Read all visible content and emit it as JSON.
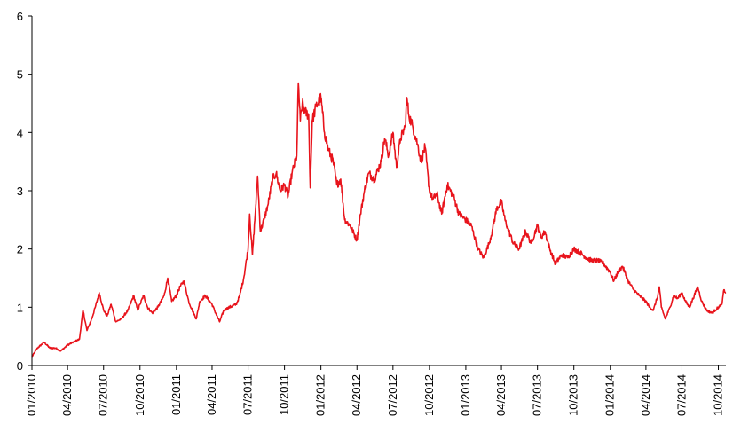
{
  "chart_data": {
    "type": "line",
    "title": "",
    "xlabel": "",
    "ylabel": "",
    "ylim": [
      0,
      6
    ],
    "xlim": [
      "2010-01-01",
      "2014-10-20"
    ],
    "y_ticks": [
      "0",
      "1",
      "2",
      "3",
      "4",
      "5",
      "6"
    ],
    "x_ticks": [
      {
        "date": "2010-01-01",
        "label": "01/2010"
      },
      {
        "date": "2010-04-01",
        "label": "04/2010"
      },
      {
        "date": "2010-07-01",
        "label": "07/2010"
      },
      {
        "date": "2010-10-01",
        "label": "10/2010"
      },
      {
        "date": "2011-01-01",
        "label": "01/2011"
      },
      {
        "date": "2011-04-01",
        "label": "04/2011"
      },
      {
        "date": "2011-07-01",
        "label": "07/2011"
      },
      {
        "date": "2011-10-01",
        "label": "10/2011"
      },
      {
        "date": "2012-01-01",
        "label": "01/2012"
      },
      {
        "date": "2012-04-01",
        "label": "04/2012"
      },
      {
        "date": "2012-07-01",
        "label": "07/2012"
      },
      {
        "date": "2012-10-01",
        "label": "10/2012"
      },
      {
        "date": "2013-01-01",
        "label": "01/2013"
      },
      {
        "date": "2013-04-01",
        "label": "04/2013"
      },
      {
        "date": "2013-07-01",
        "label": "07/2013"
      },
      {
        "date": "2013-10-01",
        "label": "10/2013"
      },
      {
        "date": "2014-01-01",
        "label": "01/2014"
      },
      {
        "date": "2014-04-01",
        "label": "04/2014"
      },
      {
        "date": "2014-07-01",
        "label": "07/2014"
      },
      {
        "date": "2014-10-01",
        "label": "10/2014"
      }
    ],
    "grid": false,
    "legend": "none",
    "series": [
      {
        "color": "#e8141c",
        "points": [
          [
            "2010-01-01",
            0.15
          ],
          [
            "2010-01-15",
            0.3
          ],
          [
            "2010-02-01",
            0.4
          ],
          [
            "2010-02-15",
            0.3
          ],
          [
            "2010-03-01",
            0.3
          ],
          [
            "2010-03-15",
            0.25
          ],
          [
            "2010-04-01",
            0.35
          ],
          [
            "2010-04-15",
            0.4
          ],
          [
            "2010-05-01",
            0.45
          ],
          [
            "2010-05-10",
            0.95
          ],
          [
            "2010-05-20",
            0.6
          ],
          [
            "2010-06-01",
            0.8
          ],
          [
            "2010-06-10",
            1.0
          ],
          [
            "2010-06-20",
            1.25
          ],
          [
            "2010-07-01",
            0.95
          ],
          [
            "2010-07-10",
            0.85
          ],
          [
            "2010-07-20",
            1.05
          ],
          [
            "2010-08-01",
            0.75
          ],
          [
            "2010-08-15",
            0.8
          ],
          [
            "2010-09-01",
            0.95
          ],
          [
            "2010-09-15",
            1.2
          ],
          [
            "2010-09-25",
            0.95
          ],
          [
            "2010-10-01",
            1.05
          ],
          [
            "2010-10-10",
            1.2
          ],
          [
            "2010-10-20",
            1.0
          ],
          [
            "2010-11-01",
            0.9
          ],
          [
            "2010-11-15",
            1.0
          ],
          [
            "2010-12-01",
            1.2
          ],
          [
            "2010-12-10",
            1.5
          ],
          [
            "2010-12-20",
            1.1
          ],
          [
            "2011-01-01",
            1.2
          ],
          [
            "2011-01-10",
            1.35
          ],
          [
            "2011-01-20",
            1.45
          ],
          [
            "2011-02-01",
            1.1
          ],
          [
            "2011-02-10",
            0.95
          ],
          [
            "2011-02-20",
            0.8
          ],
          [
            "2011-03-01",
            1.1
          ],
          [
            "2011-03-15",
            1.2
          ],
          [
            "2011-04-01",
            1.05
          ],
          [
            "2011-04-10",
            0.9
          ],
          [
            "2011-04-20",
            0.75
          ],
          [
            "2011-05-01",
            0.95
          ],
          [
            "2011-05-15",
            1.0
          ],
          [
            "2011-06-01",
            1.05
          ],
          [
            "2011-06-10",
            1.2
          ],
          [
            "2011-06-20",
            1.5
          ],
          [
            "2011-07-01",
            2.0
          ],
          [
            "2011-07-05",
            2.6
          ],
          [
            "2011-07-12",
            1.9
          ],
          [
            "2011-07-20",
            2.7
          ],
          [
            "2011-07-25",
            3.25
          ],
          [
            "2011-08-01",
            2.3
          ],
          [
            "2011-08-10",
            2.5
          ],
          [
            "2011-08-20",
            2.75
          ],
          [
            "2011-09-01",
            3.2
          ],
          [
            "2011-09-10",
            3.3
          ],
          [
            "2011-09-20",
            3.0
          ],
          [
            "2011-10-01",
            3.1
          ],
          [
            "2011-10-10",
            2.9
          ],
          [
            "2011-10-20",
            3.3
          ],
          [
            "2011-11-01",
            3.6
          ],
          [
            "2011-11-05",
            4.85
          ],
          [
            "2011-11-10",
            4.2
          ],
          [
            "2011-11-15",
            4.5
          ],
          [
            "2011-11-22",
            4.35
          ],
          [
            "2011-12-01",
            4.3
          ],
          [
            "2011-12-05",
            3.05
          ],
          [
            "2011-12-10",
            4.2
          ],
          [
            "2011-12-20",
            4.45
          ],
          [
            "2012-01-01",
            4.6
          ],
          [
            "2012-01-10",
            4.0
          ],
          [
            "2012-01-20",
            3.7
          ],
          [
            "2012-02-01",
            3.5
          ],
          [
            "2012-02-10",
            3.1
          ],
          [
            "2012-02-20",
            3.2
          ],
          [
            "2012-03-01",
            2.5
          ],
          [
            "2012-03-15",
            2.4
          ],
          [
            "2012-04-01",
            2.15
          ],
          [
            "2012-04-10",
            2.6
          ],
          [
            "2012-04-20",
            3.0
          ],
          [
            "2012-05-01",
            3.3
          ],
          [
            "2012-05-15",
            3.2
          ],
          [
            "2012-06-01",
            3.5
          ],
          [
            "2012-06-10",
            3.9
          ],
          [
            "2012-06-20",
            3.6
          ],
          [
            "2012-07-01",
            4.0
          ],
          [
            "2012-07-10",
            3.4
          ],
          [
            "2012-07-20",
            3.9
          ],
          [
            "2012-08-01",
            4.1
          ],
          [
            "2012-08-05",
            4.6
          ],
          [
            "2012-08-10",
            4.3
          ],
          [
            "2012-08-20",
            4.1
          ],
          [
            "2012-09-01",
            3.8
          ],
          [
            "2012-09-10",
            3.5
          ],
          [
            "2012-09-20",
            3.75
          ],
          [
            "2012-10-01",
            3.0
          ],
          [
            "2012-10-10",
            2.85
          ],
          [
            "2012-10-20",
            2.95
          ],
          [
            "2012-11-01",
            2.6
          ],
          [
            "2012-11-15",
            3.1
          ],
          [
            "2012-12-01",
            2.9
          ],
          [
            "2012-12-15",
            2.6
          ],
          [
            "2013-01-01",
            2.5
          ],
          [
            "2013-01-15",
            2.4
          ],
          [
            "2013-02-01",
            2.0
          ],
          [
            "2013-02-15",
            1.85
          ],
          [
            "2013-03-01",
            2.1
          ],
          [
            "2013-03-10",
            2.35
          ],
          [
            "2013-03-20",
            2.7
          ],
          [
            "2013-04-01",
            2.8
          ],
          [
            "2013-04-10",
            2.5
          ],
          [
            "2013-04-20",
            2.3
          ],
          [
            "2013-05-01",
            2.1
          ],
          [
            "2013-05-15",
            2.0
          ],
          [
            "2013-06-01",
            2.3
          ],
          [
            "2013-06-15",
            2.1
          ],
          [
            "2013-07-01",
            2.4
          ],
          [
            "2013-07-10",
            2.2
          ],
          [
            "2013-07-20",
            2.3
          ],
          [
            "2013-08-01",
            2.0
          ],
          [
            "2013-08-15",
            1.75
          ],
          [
            "2013-09-01",
            1.9
          ],
          [
            "2013-09-15",
            1.85
          ],
          [
            "2013-10-01",
            2.0
          ],
          [
            "2013-10-15",
            1.95
          ],
          [
            "2013-11-01",
            1.85
          ],
          [
            "2013-11-15",
            1.8
          ],
          [
            "2013-12-01",
            1.8
          ],
          [
            "2013-12-15",
            1.75
          ],
          [
            "2014-01-01",
            1.6
          ],
          [
            "2014-01-10",
            1.45
          ],
          [
            "2014-01-20",
            1.6
          ],
          [
            "2014-02-01",
            1.7
          ],
          [
            "2014-02-15",
            1.45
          ],
          [
            "2014-03-01",
            1.3
          ],
          [
            "2014-03-15",
            1.2
          ],
          [
            "2014-04-01",
            1.1
          ],
          [
            "2014-04-10",
            1.0
          ],
          [
            "2014-04-20",
            0.95
          ],
          [
            "2014-05-01",
            1.2
          ],
          [
            "2014-05-05",
            1.35
          ],
          [
            "2014-05-10",
            1.0
          ],
          [
            "2014-05-20",
            0.8
          ],
          [
            "2014-06-01",
            1.0
          ],
          [
            "2014-06-10",
            1.2
          ],
          [
            "2014-06-20",
            1.15
          ],
          [
            "2014-07-01",
            1.25
          ],
          [
            "2014-07-10",
            1.1
          ],
          [
            "2014-07-20",
            1.0
          ],
          [
            "2014-08-01",
            1.2
          ],
          [
            "2014-08-10",
            1.35
          ],
          [
            "2014-08-20",
            1.1
          ],
          [
            "2014-09-01",
            0.95
          ],
          [
            "2014-09-15",
            0.9
          ],
          [
            "2014-10-01",
            1.0
          ],
          [
            "2014-10-10",
            1.05
          ],
          [
            "2014-10-15",
            1.3
          ],
          [
            "2014-10-20",
            1.25
          ]
        ]
      }
    ]
  }
}
